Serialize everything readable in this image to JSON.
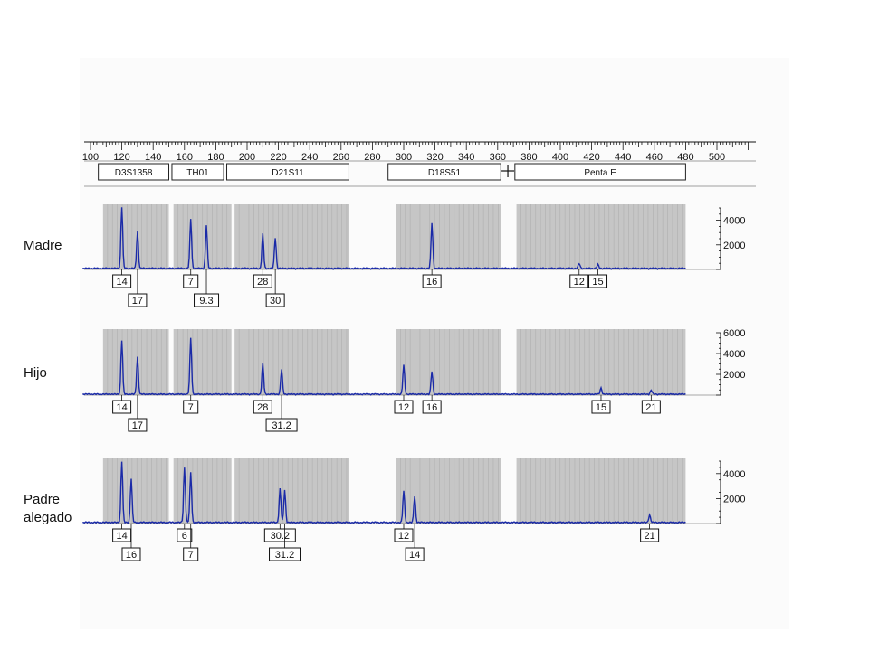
{
  "chart_data": {
    "type": "line",
    "x_axis": {
      "range": [
        100,
        500
      ],
      "tick_labels": [
        "100",
        "120",
        "140",
        "160",
        "180",
        "200",
        "220",
        "240",
        "260",
        "280",
        "300",
        "320",
        "340",
        "360",
        "380",
        "400",
        "420",
        "440",
        "460",
        "480",
        "500"
      ]
    },
    "loci": [
      {
        "name": "D3S1358",
        "range": [
          105,
          150
        ]
      },
      {
        "name": "TH01",
        "range": [
          152,
          185
        ]
      },
      {
        "name": "D21S11",
        "range": [
          187,
          265
        ]
      },
      {
        "name": "D18S51",
        "range": [
          290,
          362
        ]
      },
      {
        "name": "Penta E",
        "range": [
          371,
          480
        ]
      }
    ],
    "bins": [
      {
        "range": [
          108,
          150
        ]
      },
      {
        "range": [
          153,
          190
        ]
      },
      {
        "range": [
          192,
          265
        ]
      },
      {
        "range": [
          295,
          362
        ]
      },
      {
        "range": [
          372,
          480
        ]
      }
    ],
    "series": [
      {
        "name": "Madre",
        "y_ticks": [
          "2000",
          "4000"
        ],
        "ymax": 5000,
        "peaks": [
          {
            "x": 120,
            "height": 5000,
            "allele": "14",
            "label_row": 1
          },
          {
            "x": 130,
            "height": 3000,
            "allele": "17",
            "label_row": 2
          },
          {
            "x": 164,
            "height": 4000,
            "allele": "7",
            "label_row": 1
          },
          {
            "x": 174,
            "height": 3500,
            "allele": "9.3",
            "label_row": 2
          },
          {
            "x": 210,
            "height": 2800,
            "allele": "28",
            "label_row": 1
          },
          {
            "x": 218,
            "height": 2500,
            "allele": "30",
            "label_row": 2
          },
          {
            "x": 318,
            "height": 3700,
            "allele": "16",
            "label_row": 1
          },
          {
            "x": 412,
            "height": 400,
            "allele": "12",
            "label_row": 1
          },
          {
            "x": 424,
            "height": 300,
            "allele": "15",
            "label_row": 1
          }
        ]
      },
      {
        "name": "Hijo",
        "y_ticks": [
          "2000",
          "4000",
          "6000"
        ],
        "ymax": 6000,
        "peaks": [
          {
            "x": 120,
            "height": 5200,
            "allele": "14",
            "label_row": 1
          },
          {
            "x": 130,
            "height": 3600,
            "allele": "17",
            "label_row": 2
          },
          {
            "x": 164,
            "height": 5400,
            "allele": "7",
            "label_row": 1
          },
          {
            "x": 210,
            "height": 3000,
            "allele": "28",
            "label_row": 1
          },
          {
            "x": 222,
            "height": 2400,
            "allele": "31.2",
            "label_row": 2
          },
          {
            "x": 300,
            "height": 2800,
            "allele": "12",
            "label_row": 1
          },
          {
            "x": 318,
            "height": 2200,
            "allele": "16",
            "label_row": 1
          },
          {
            "x": 426,
            "height": 600,
            "allele": "15",
            "label_row": 1
          },
          {
            "x": 458,
            "height": 400,
            "allele": "21",
            "label_row": 1
          }
        ]
      },
      {
        "name": "Padre alegado",
        "y_ticks": [
          "2000",
          "4000"
        ],
        "ymax": 5000,
        "peaks": [
          {
            "x": 120,
            "height": 4900,
            "allele": "14",
            "label_row": 1
          },
          {
            "x": 126,
            "height": 3500,
            "allele": "16",
            "label_row": 2
          },
          {
            "x": 160,
            "height": 4400,
            "allele": "6",
            "label_row": 1
          },
          {
            "x": 164,
            "height": 4000,
            "allele": "7",
            "label_row": 2
          },
          {
            "x": 221,
            "height": 2700,
            "allele": "30.2",
            "label_row": 1
          },
          {
            "x": 224,
            "height": 2600,
            "allele": "31.2",
            "label_row": 2
          },
          {
            "x": 300,
            "height": 2500,
            "allele": "12",
            "label_row": 1
          },
          {
            "x": 307,
            "height": 2100,
            "allele": "14",
            "label_row": 2
          },
          {
            "x": 457,
            "height": 600,
            "allele": "21",
            "label_row": 1
          }
        ]
      }
    ],
    "labels": {
      "madre": "Madre",
      "hijo": "Hijo",
      "padre_line1": "Padre",
      "padre_line2": "alegado"
    }
  }
}
